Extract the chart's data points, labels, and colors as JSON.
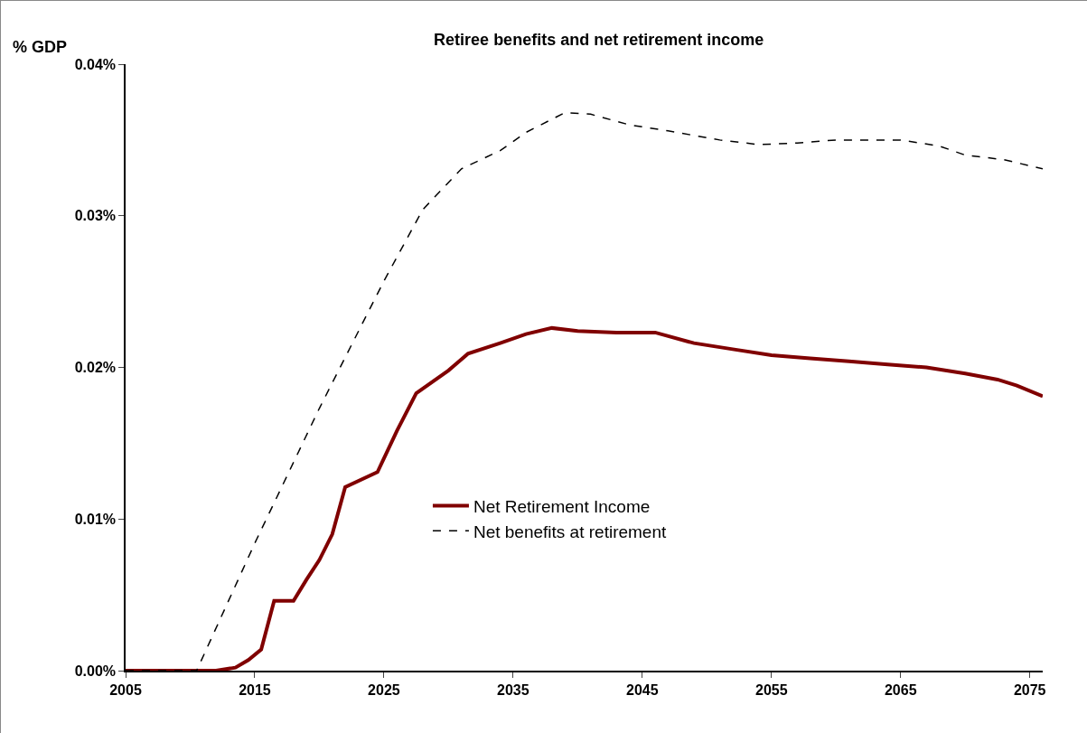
{
  "chart_data": {
    "type": "line",
    "title": "Retiree benefits and net retirement income",
    "ylabel": "% GDP",
    "xlim": [
      2005,
      2076
    ],
    "xticks": [
      2005,
      2015,
      2025,
      2035,
      2045,
      2055,
      2065,
      2075
    ],
    "ylim": [
      0,
      0.04
    ],
    "yticks": [
      {
        "value": 0,
        "label": "0.00%"
      },
      {
        "value": 0.01,
        "label": "0.01%"
      },
      {
        "value": 0.02,
        "label": "0.02%"
      },
      {
        "value": 0.03,
        "label": "0.03%"
      },
      {
        "value": 0.04,
        "label": "0.04%"
      }
    ],
    "grid": false,
    "legend": "bottom",
    "marker": "none",
    "series": [
      {
        "name": "Net Retirement Income",
        "color": "#800000",
        "line_style": "solid",
        "x": [
          2005,
          2012,
          2013.5,
          2014.5,
          2015.5,
          2016.5,
          2018,
          2019,
          2020,
          2021,
          2022,
          2024.5,
          2026,
          2027.5,
          2030,
          2031.5,
          2034,
          2036,
          2038,
          2040,
          2043,
          2046,
          2049,
          2052,
          2055,
          2058,
          2061,
          2064,
          2067,
          2070,
          2072.5,
          2074,
          2076
        ],
        "values": [
          0,
          0,
          0.0002,
          0.0007,
          0.0014,
          0.0046,
          0.0046,
          0.006,
          0.0073,
          0.009,
          0.0121,
          0.0131,
          0.0158,
          0.0183,
          0.0198,
          0.0209,
          0.0216,
          0.0222,
          0.0226,
          0.0224,
          0.0223,
          0.0223,
          0.0216,
          0.0212,
          0.0208,
          0.0206,
          0.0204,
          0.0202,
          0.02,
          0.0196,
          0.0192,
          0.0188,
          0.0181
        ]
      },
      {
        "name": "Net benefits at retirement",
        "color": "#000000",
        "line_style": "dashed",
        "x": [
          2005,
          2010.5,
          2015,
          2020,
          2025,
          2028,
          2031,
          2034,
          2036,
          2039,
          2041,
          2044,
          2047,
          2051,
          2054,
          2057,
          2060,
          2065,
          2068,
          2070,
          2073,
          2076
        ],
        "values": [
          0,
          0,
          0.0084,
          0.0173,
          0.0257,
          0.0304,
          0.0331,
          0.0343,
          0.0355,
          0.0368,
          0.0367,
          0.036,
          0.0356,
          0.035,
          0.0347,
          0.0348,
          0.035,
          0.035,
          0.0346,
          0.034,
          0.0337,
          0.0331
        ]
      }
    ]
  }
}
